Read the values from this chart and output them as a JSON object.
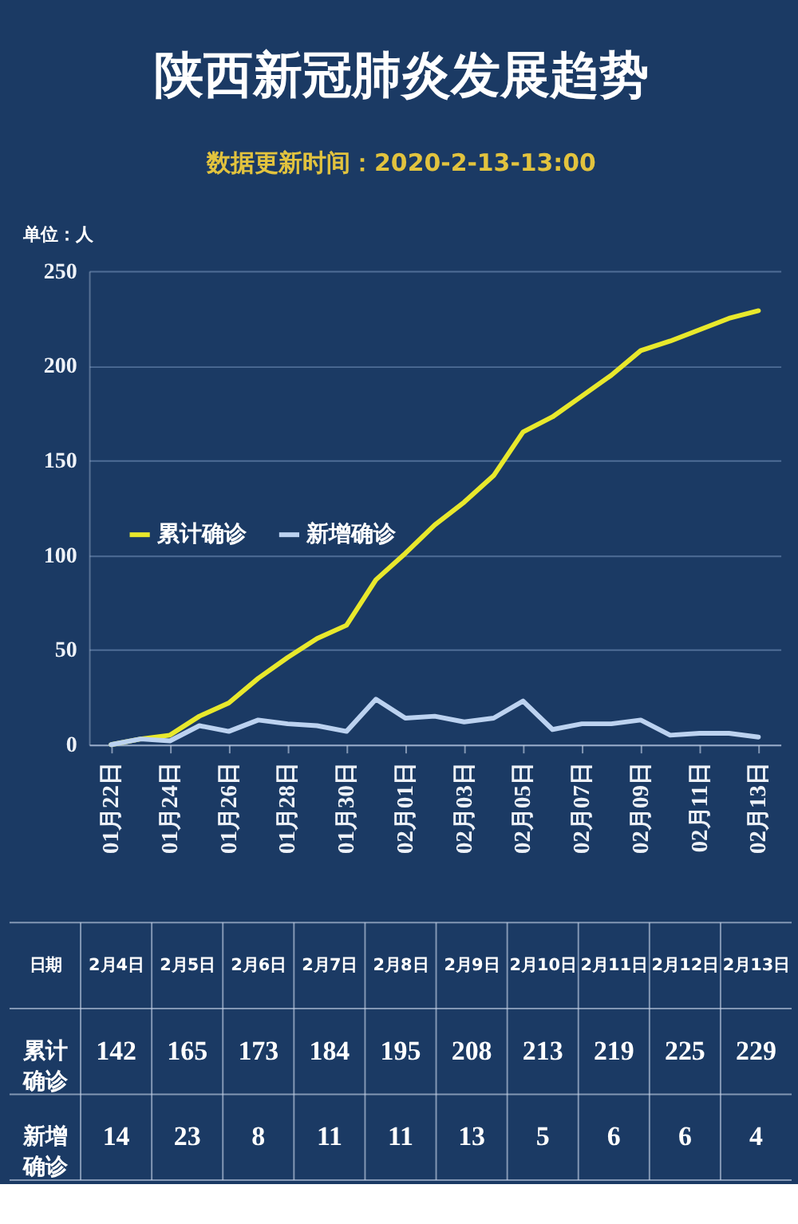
{
  "chart_data": [
    {
      "type": "line",
      "title": "陕西新冠肺炎发展趋势",
      "subtitle": "数据更新时间：2020-2-13-13:00",
      "ylabel": "单位：人",
      "categories": [
        "01月22日",
        null,
        "01月24日",
        null,
        "01月26日",
        null,
        "01月28日",
        null,
        "01月30日",
        null,
        "02月01日",
        null,
        "02月03日",
        null,
        "02月05日",
        null,
        "02月07日",
        null,
        "02月09日",
        null,
        "02月11日",
        null,
        "02月13日"
      ],
      "series": [
        {
          "name": "累计确诊",
          "color": "#e8e82c",
          "values": [
            0,
            3,
            5,
            15,
            22,
            35,
            46,
            56,
            63,
            87,
            101,
            116,
            128,
            142,
            165,
            173,
            184,
            195,
            208,
            213,
            219,
            225,
            229
          ]
        },
        {
          "name": "新增确诊",
          "color": "#bcd2f0",
          "values": [
            0,
            3,
            2,
            10,
            7,
            13,
            11,
            10,
            7,
            24,
            14,
            15,
            12,
            14,
            23,
            8,
            11,
            11,
            13,
            5,
            6,
            6,
            4
          ]
        }
      ],
      "ylim": [
        0,
        250
      ],
      "yticks": [
        0,
        50,
        100,
        150,
        200,
        250
      ],
      "grid": "y",
      "legend": "left",
      "line_style": "solid"
    },
    {
      "type": "other",
      "xlabel": "日期",
      "categories": [
        "2月4日",
        "2月5日",
        "2月6日",
        "2月7日",
        "2月8日",
        "2月9日",
        "2月10日",
        "2月11日",
        "2月12日",
        "2月13日"
      ],
      "series": [
        {
          "name": "累计确诊",
          "values": [
            142,
            165,
            173,
            184,
            195,
            208,
            213,
            219,
            225,
            229
          ]
        },
        {
          "name": "新增确诊",
          "values": [
            14,
            23,
            8,
            11,
            11,
            13,
            5,
            6,
            6,
            4
          ]
        }
      ],
      "data_labels": true
    }
  ]
}
